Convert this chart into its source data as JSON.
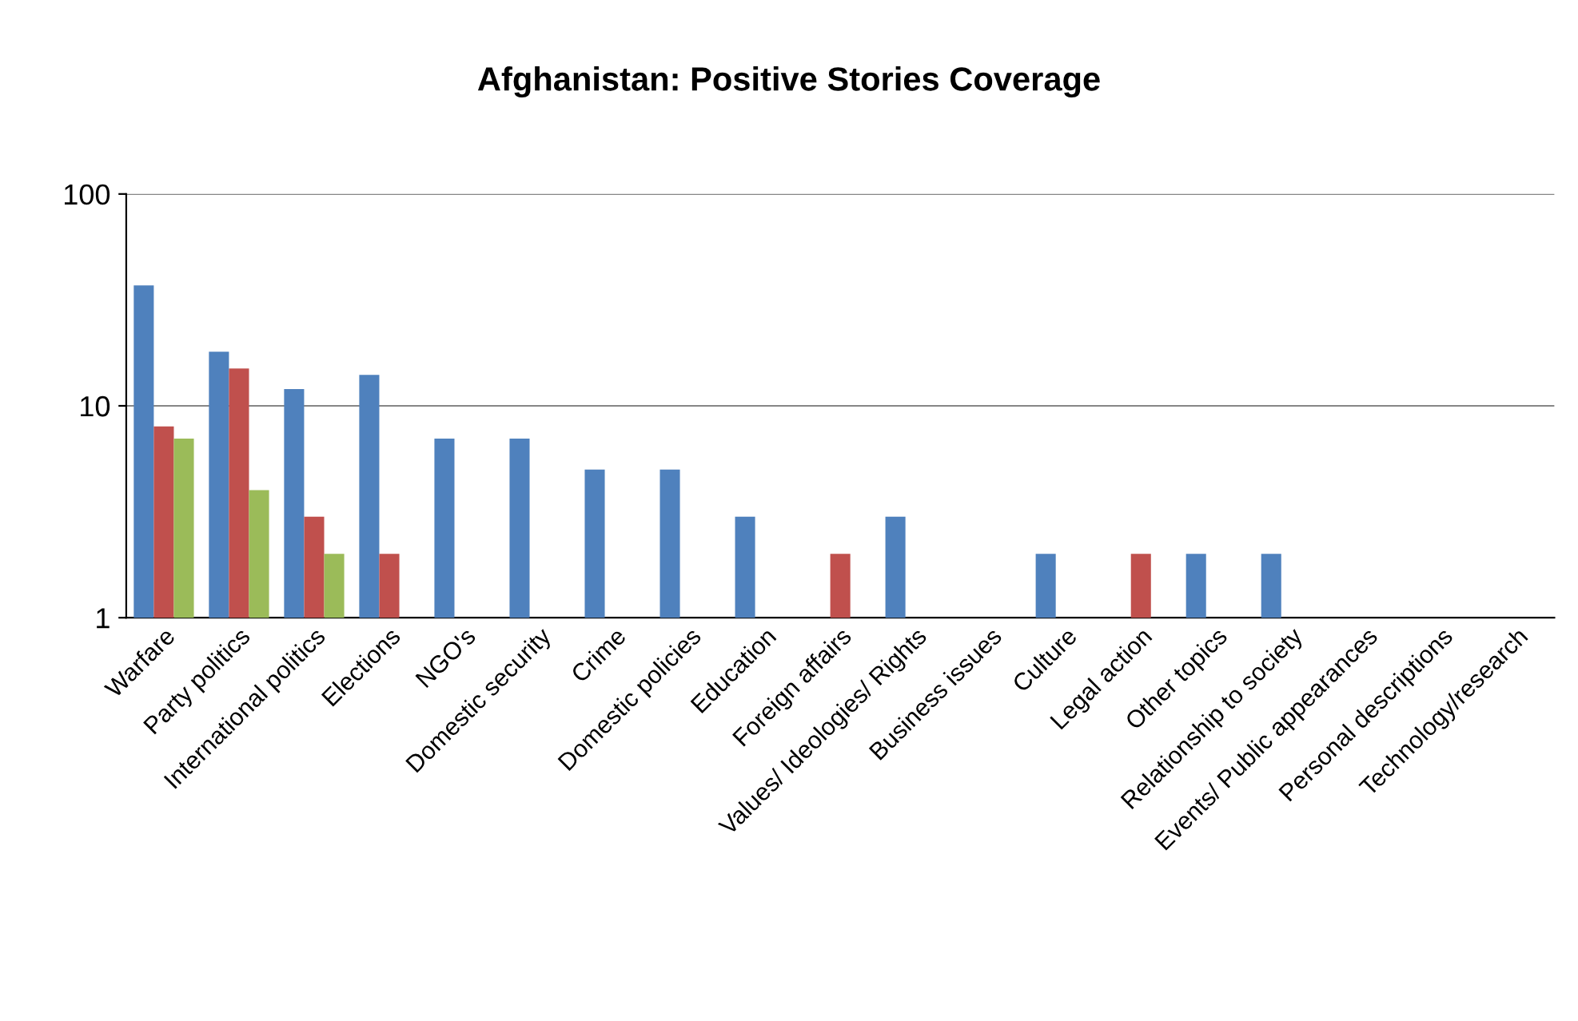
{
  "chart_data": {
    "type": "bar",
    "title": "Afghanistan: Positive Stories Coverage",
    "categories": [
      "Warfare",
      "Party politics",
      "International politics",
      "Elections",
      "NGO's",
      "Domestic security",
      "Crime",
      "Domestic policies",
      "Education",
      "Foreign affairs",
      "Values/ Ideologies/ Rights",
      "Business issues",
      "Culture",
      "Legal action",
      "Other topics",
      "Relationship to society",
      "Events/ Public appearances",
      "Personal descriptions",
      "Technology/research"
    ],
    "series": [
      {
        "color": "#4f81bd",
        "values": [
          37,
          18,
          12,
          14,
          7,
          7,
          5,
          5,
          3,
          null,
          3,
          null,
          2,
          null,
          2,
          2,
          null,
          null,
          null
        ]
      },
      {
        "color": "#c0504d",
        "values": [
          8,
          15,
          3,
          2,
          null,
          null,
          null,
          null,
          null,
          2,
          null,
          null,
          null,
          2,
          null,
          null,
          null,
          null,
          null
        ]
      },
      {
        "color": "#9bbb59",
        "values": [
          7,
          4,
          2,
          null,
          null,
          null,
          null,
          null,
          null,
          null,
          null,
          null,
          null,
          null,
          null,
          null,
          null,
          null,
          null
        ]
      }
    ],
    "log": "y",
    "ylim": [
      1,
      100
    ],
    "yticks": [
      1,
      10,
      100
    ],
    "grid": "y"
  }
}
